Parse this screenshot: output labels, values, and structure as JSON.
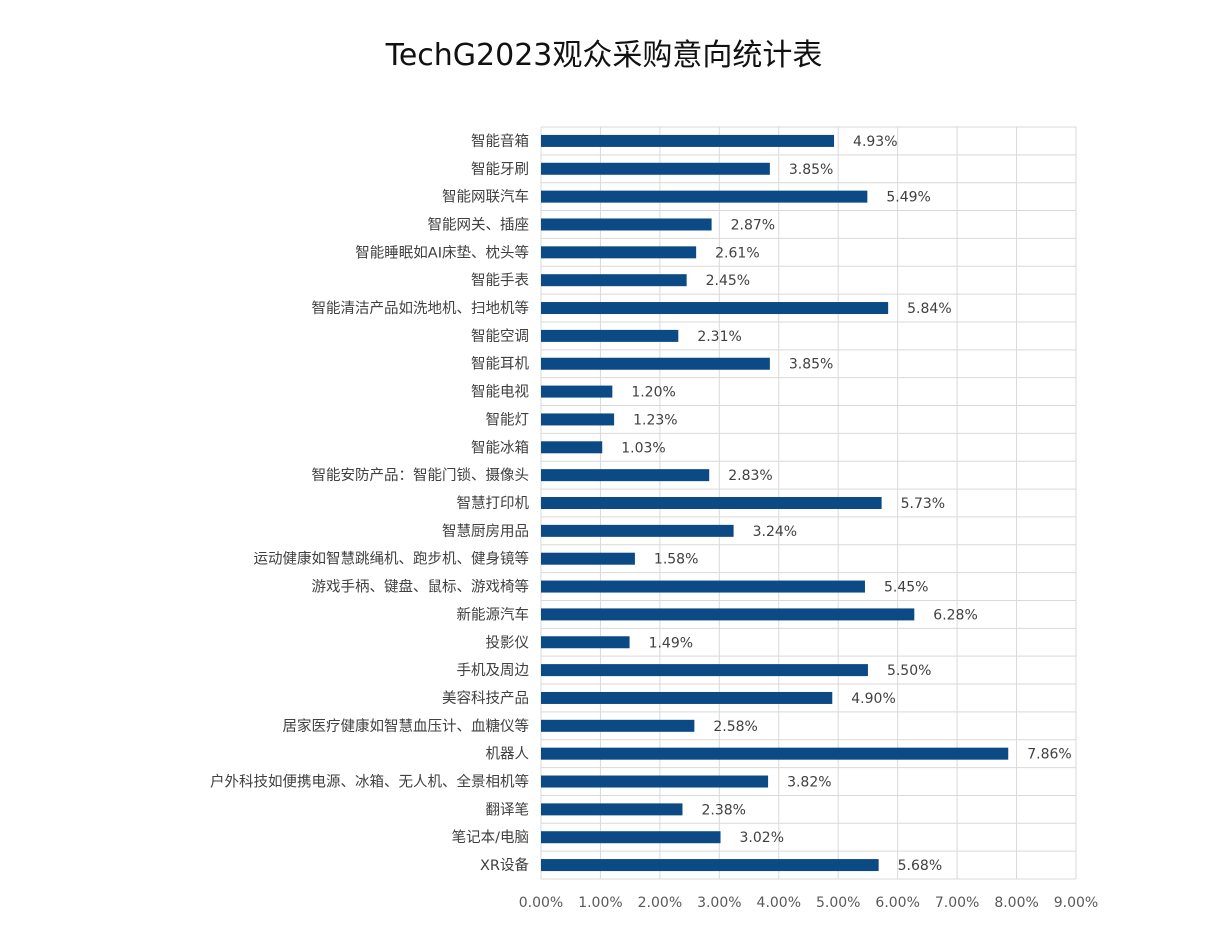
{
  "chart_data": {
    "type": "bar",
    "orientation": "horizontal",
    "title": "TechG2023观众采购意向统计表",
    "categories": [
      "智能音箱",
      "智能牙刷",
      "智能网联汽车",
      "智能网关、插座",
      "智能睡眠如AI床垫、枕头等",
      "智能手表",
      "智能清洁产品如洗地机、扫地机等",
      "智能空调",
      "智能耳机",
      "智能电视",
      "智能灯",
      "智能冰箱",
      "智能安防产品：智能门锁、摄像头",
      "智慧打印机",
      "智慧厨房用品",
      "运动健康如智慧跳绳机、跑步机、健身镜等",
      "游戏手柄、键盘、鼠标、游戏椅等",
      "新能源汽车",
      "投影仪",
      "手机及周边",
      "美容科技产品",
      "居家医疗健康如智慧血压计、血糖仪等",
      "机器人",
      "户外科技如便携电源、冰箱、无人机、全景相机等",
      "翻译笔",
      "笔记本/电脑",
      "XR设备"
    ],
    "values": [
      4.93,
      3.85,
      5.49,
      2.87,
      2.61,
      2.45,
      5.84,
      2.31,
      3.85,
      1.2,
      1.23,
      1.03,
      2.83,
      5.73,
      3.24,
      1.58,
      5.45,
      6.28,
      1.49,
      5.5,
      4.9,
      2.58,
      7.86,
      3.82,
      2.38,
      3.02,
      5.68
    ],
    "data_labels": [
      "4.93%",
      "3.85%",
      "5.49%",
      "2.87%",
      "2.61%",
      "2.45%",
      "5.84%",
      "2.31%",
      "3.85%",
      "1.20%",
      "1.23%",
      "1.03%",
      "2.83%",
      "5.73%",
      "3.24%",
      "1.58%",
      "5.45%",
      "6.28%",
      "1.49%",
      "5.50%",
      "4.90%",
      "2.58%",
      "7.86%",
      "3.82%",
      "2.38%",
      "3.02%",
      "5.68%"
    ],
    "x_ticks": [
      "0.00%",
      "1.00%",
      "2.00%",
      "3.00%",
      "4.00%",
      "5.00%",
      "6.00%",
      "7.00%",
      "8.00%",
      "9.00%"
    ],
    "xlim": [
      0,
      9
    ],
    "grid": true,
    "legend": "none",
    "bar_color": "#0b4a84",
    "grid_color": "#d9d9d9"
  }
}
